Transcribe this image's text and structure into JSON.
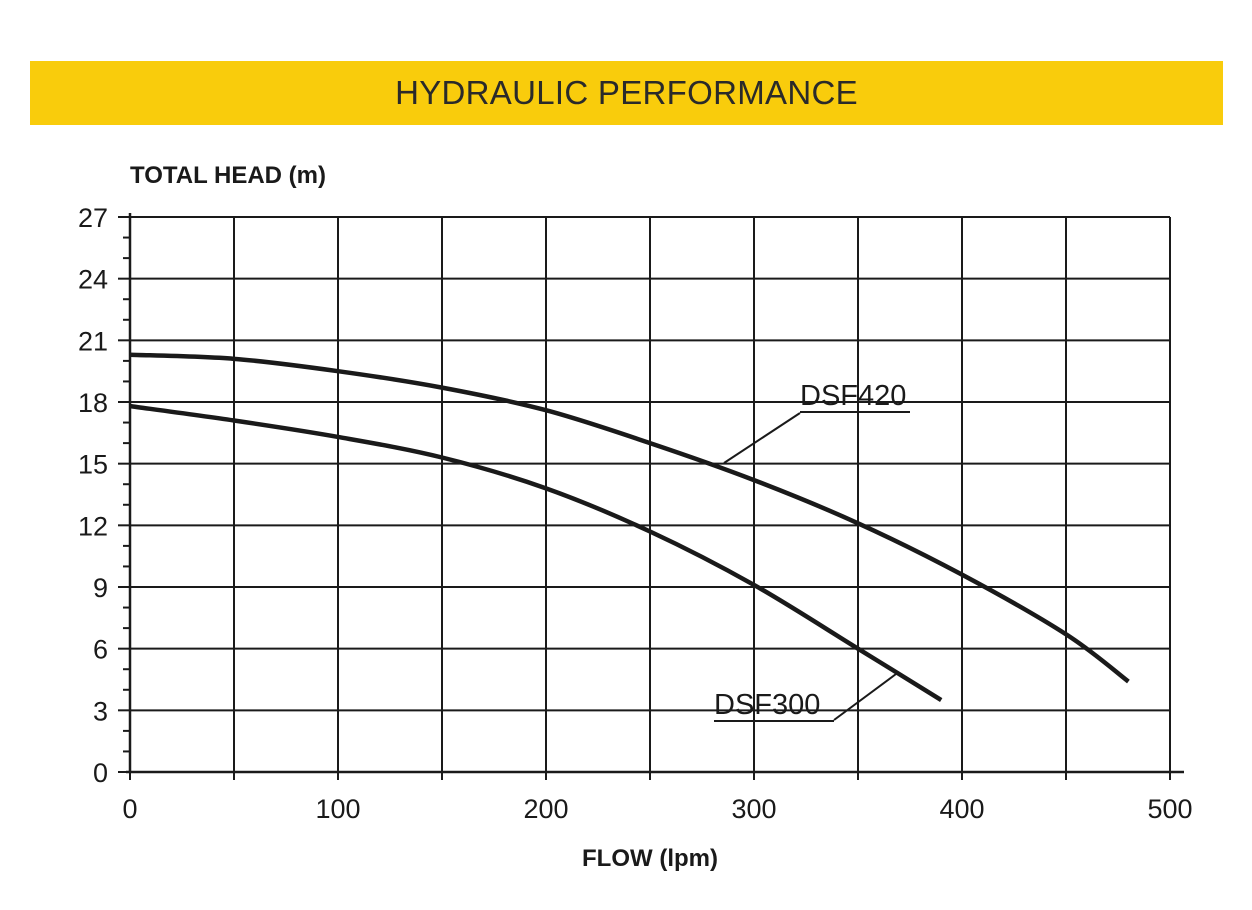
{
  "banner": {
    "title": "HYDRAULIC PERFORMANCE"
  },
  "colors": {
    "banner": "#f9cc0c",
    "line": "#1a1a1a",
    "grid": "#1a1a1a"
  },
  "chart_data": {
    "type": "line",
    "title": "HYDRAULIC PERFORMANCE",
    "xlabel": "FLOW (lpm)",
    "ylabel": "TOTAL HEAD (m)",
    "xlim": [
      0,
      500
    ],
    "ylim": [
      0,
      27
    ],
    "x_ticks": [
      0,
      100,
      200,
      300,
      400,
      500
    ],
    "y_ticks": [
      0,
      3,
      6,
      9,
      12,
      15,
      18,
      21,
      24,
      27
    ],
    "grid": true,
    "series": [
      {
        "name": "DSF420",
        "x": [
          0,
          50,
          100,
          150,
          200,
          250,
          300,
          350,
          400,
          450,
          480
        ],
        "y": [
          20.3,
          20.1,
          19.5,
          18.7,
          17.6,
          16.0,
          14.2,
          12.1,
          9.6,
          6.7,
          4.4
        ]
      },
      {
        "name": "DSF300",
        "x": [
          0,
          50,
          100,
          150,
          200,
          250,
          300,
          350,
          390
        ],
        "y": [
          17.8,
          17.1,
          16.3,
          15.3,
          13.8,
          11.7,
          9.1,
          6.0,
          3.5
        ]
      }
    ]
  }
}
